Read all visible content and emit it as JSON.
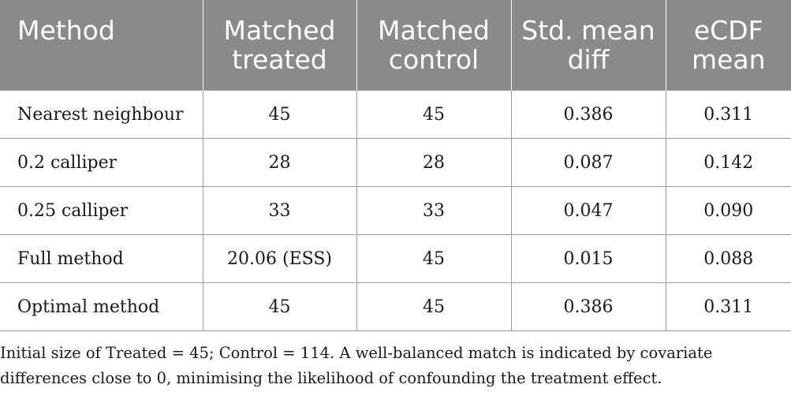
{
  "table": {
    "headers": [
      [
        "Method"
      ],
      [
        "Matched",
        "treated"
      ],
      [
        "Matched",
        "control"
      ],
      [
        "Std. mean",
        "diff"
      ],
      [
        "eCDF",
        "mean"
      ]
    ],
    "rows": [
      [
        "Nearest neighbour",
        "45",
        "45",
        "0.386",
        "0.311"
      ],
      [
        "0.2 calliper",
        "28",
        "28",
        "0.087",
        "0.142"
      ],
      [
        "0.25 calliper",
        "33",
        "33",
        "0.047",
        "0.090"
      ],
      [
        "Full method",
        "20.06 (ESS)",
        "45",
        "0.015",
        "0.088"
      ],
      [
        "Optimal method",
        "45",
        "45",
        "0.386",
        "0.311"
      ]
    ]
  },
  "footnote": {
    "line1": "Initial size of Treated = 45; Control = 114. A well-balanced match is indicated by covariate",
    "line2": "differences close to 0, minimising the likelihood of confounding the treatment effect."
  },
  "colors": {
    "header_bg": "#8a8a8a",
    "header_text": "#ffffff",
    "rule": "#9a9a9a"
  }
}
